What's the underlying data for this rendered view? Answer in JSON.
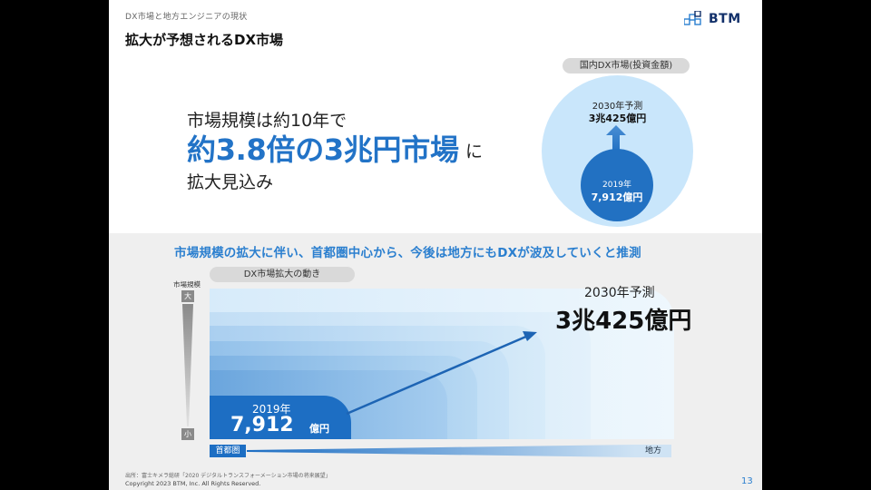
{
  "header": {
    "breadcrumb": "DX市場と地方エンジニアの現状",
    "title": "拡大が予想されるDX市場",
    "logo_text": "BTM"
  },
  "lead": {
    "line1": "市場規模は約10年で",
    "line2_highlight": "約3.8倍の3兆円市場",
    "line2_suffix": "に",
    "line3": "拡大見込み"
  },
  "circle_chart": {
    "pill_label": "国内DX市場(投資金額)",
    "forecast_label": "2030年予測",
    "forecast_value": "3兆425億円",
    "base_year": "2019年",
    "base_value": "7,912億円"
  },
  "lower": {
    "headline": "市場規模の拡大に伴い、首都圏中心から、今後は地方にもDXが波及していくと推測",
    "pill_label": "DX市場拡大の動き",
    "y_axis_label": "市場規模",
    "y_axis_top": "大",
    "y_axis_bottom": "小",
    "start_year": "2019年",
    "start_value": "7,912",
    "start_unit": "億円",
    "end_label": "2030年予測",
    "end_value": "3兆425億円",
    "x_axis_left": "首都圏",
    "x_axis_right": "地方"
  },
  "footer": {
    "source": "出所：富士キメラ総研「2020 デジタルトランスフォーメーション市場の将来展望」",
    "copyright": "Copyright 2023 BTM, Inc. All Rights Reserved.",
    "page_number": "13"
  },
  "colors": {
    "primary_blue": "#1d6ec3",
    "accent_blue": "#2b7fcf",
    "light_blue": "#c9e6fb",
    "navy": "#12306a",
    "panel_gray": "#efefef"
  }
}
